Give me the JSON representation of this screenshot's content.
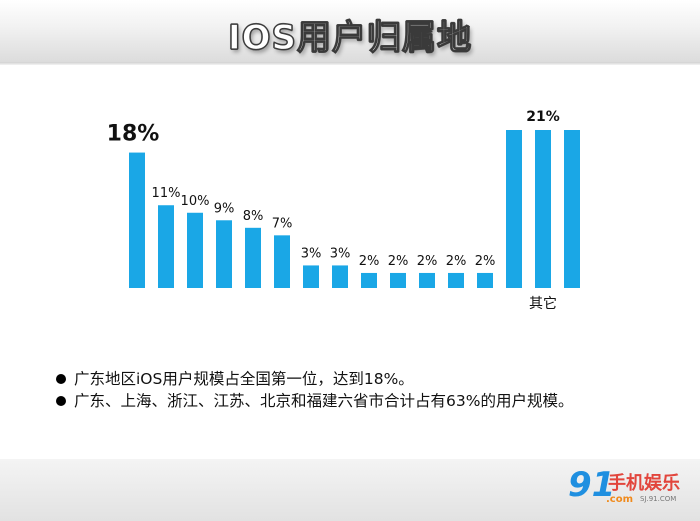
{
  "title": "IOS用户归属地",
  "chart_data": {
    "type": "bar",
    "title": "IOS用户归属地",
    "xlabel": "",
    "ylabel": "",
    "bars": [
      18,
      11,
      10,
      9,
      8,
      7,
      3,
      3,
      2,
      2,
      2,
      2,
      2,
      21,
      21,
      21
    ],
    "data_labels": [
      "18%",
      "11%",
      "10%",
      "9%",
      "8%",
      "7%",
      "3%",
      "3%",
      "2%",
      "2%",
      "2%",
      "2%",
      "2%",
      "21%"
    ],
    "group_label": "其它",
    "bar_color": "#1aa7e6",
    "ylim": [
      0,
      21
    ]
  },
  "notes": [
    "广东地区iOS用户规模占全国第一位，达到18%。",
    "广东、上海、浙江、江苏、北京和福建六省市合计占有63%的用户规模。"
  ],
  "logo": {
    "number": "91",
    "name": "手机娱乐",
    "com": ".com",
    "domain": "SJ.91.COM"
  }
}
